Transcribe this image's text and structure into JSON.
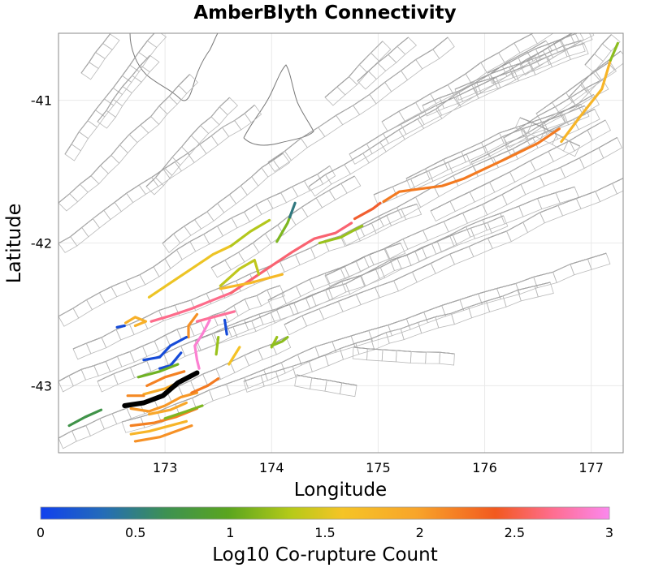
{
  "chart_data": {
    "type": "map",
    "title": "AmberBlyth Connectivity",
    "xlabel": "Longitude",
    "ylabel": "Latitude",
    "xlim": [
      172.0,
      177.3
    ],
    "ylim": [
      -43.47,
      -40.53
    ],
    "xticks": [
      173,
      174,
      175,
      176,
      177
    ],
    "xtick_labels": [
      "173",
      "174",
      "175",
      "176",
      "177"
    ],
    "yticks": [
      -41,
      -42,
      -43
    ],
    "ytick_labels": [
      "-41",
      "-42",
      "-43"
    ],
    "grid": true,
    "colorbar": {
      "label": "Log10 Co-rupture Count",
      "min": 0,
      "max": 3,
      "ticks": [
        0,
        0.5,
        1,
        1.5,
        2,
        2.5,
        3
      ],
      "tick_labels": [
        "0",
        "0.5",
        "1",
        "1.5",
        "2",
        "2.5",
        "3"
      ],
      "colors": [
        "#1040ee",
        "#3a8a5a",
        "#4aa32a",
        "#a8c81a",
        "#f5c426",
        "#f8a52a",
        "#f2721f",
        "#f0503a",
        "#fe6d8f",
        "#fb88ee"
      ]
    },
    "source_fault": {
      "name": "AmberBlyth",
      "color": "#000000",
      "points": [
        [
          172.62,
          -43.14
        ],
        [
          172.8,
          -43.12
        ],
        [
          172.98,
          -43.07
        ],
        [
          173.12,
          -42.98
        ],
        [
          173.3,
          -42.91
        ]
      ]
    },
    "co_rupture_sections": [
      {
        "log10_count": 0.45,
        "points": [
          [
            172.1,
            -43.28
          ],
          [
            172.25,
            -43.22
          ],
          [
            172.4,
            -43.17
          ]
        ]
      },
      {
        "log10_count": 0.05,
        "points": [
          [
            172.55,
            -42.59
          ],
          [
            172.62,
            -42.58
          ]
        ]
      },
      {
        "log10_count": 1.55,
        "points": [
          [
            172.63,
            -42.56
          ],
          [
            172.72,
            -42.52
          ],
          [
            172.82,
            -42.55
          ],
          [
            172.72,
            -42.58
          ]
        ]
      },
      {
        "log10_count": 2.65,
        "points": [
          [
            172.87,
            -42.55
          ],
          [
            173.05,
            -42.51
          ],
          [
            173.25,
            -42.46
          ],
          [
            173.45,
            -42.4
          ],
          [
            173.62,
            -42.35
          ]
        ]
      },
      {
        "log10_count": 2.55,
        "points": [
          [
            173.62,
            -42.35
          ],
          [
            173.82,
            -42.25
          ],
          [
            174.0,
            -42.16
          ],
          [
            174.2,
            -42.06
          ],
          [
            174.4,
            -41.97
          ],
          [
            174.6,
            -41.93
          ],
          [
            174.75,
            -41.86
          ]
        ]
      },
      {
        "log10_count": 2.2,
        "points": [
          [
            174.78,
            -41.83
          ],
          [
            174.95,
            -41.76
          ],
          [
            175.02,
            -41.72
          ]
        ]
      },
      {
        "log10_count": 1.95,
        "points": [
          [
            175.05,
            -41.71
          ],
          [
            175.2,
            -41.64
          ],
          [
            175.4,
            -41.62
          ],
          [
            175.6,
            -41.6
          ],
          [
            175.8,
            -41.55
          ],
          [
            176.0,
            -41.48
          ],
          [
            176.2,
            -41.41
          ],
          [
            176.5,
            -41.3
          ],
          [
            176.7,
            -41.2
          ]
        ]
      },
      {
        "log10_count": 1.5,
        "points": [
          [
            176.72,
            -41.29
          ],
          [
            176.9,
            -41.11
          ],
          [
            177.1,
            -40.92
          ],
          [
            177.18,
            -40.72
          ]
        ]
      },
      {
        "log10_count": 0.9,
        "points": [
          [
            177.18,
            -40.72
          ],
          [
            177.25,
            -40.6
          ]
        ]
      },
      {
        "log10_count": 1.3,
        "points": [
          [
            172.85,
            -42.38
          ],
          [
            173.05,
            -42.28
          ],
          [
            173.25,
            -42.18
          ],
          [
            173.45,
            -42.08
          ],
          [
            173.62,
            -42.02
          ]
        ]
      },
      {
        "log10_count": 1.05,
        "points": [
          [
            173.62,
            -42.02
          ],
          [
            173.8,
            -41.92
          ],
          [
            173.98,
            -41.84
          ]
        ]
      },
      {
        "log10_count": 1.1,
        "points": [
          [
            173.52,
            -42.3
          ],
          [
            173.7,
            -42.18
          ],
          [
            173.84,
            -42.12
          ],
          [
            173.88,
            -42.22
          ]
        ]
      },
      {
        "log10_count": 1.45,
        "points": [
          [
            173.52,
            -42.32
          ],
          [
            173.8,
            -42.28
          ],
          [
            174.1,
            -42.22
          ]
        ]
      },
      {
        "log10_count": 0.85,
        "points": [
          [
            174.05,
            -41.99
          ],
          [
            174.15,
            -41.86
          ],
          [
            174.18,
            -41.8
          ]
        ]
      },
      {
        "log10_count": 0.25,
        "points": [
          [
            174.17,
            -41.82
          ],
          [
            174.22,
            -41.72
          ]
        ]
      },
      {
        "log10_count": 0.95,
        "points": [
          [
            174.45,
            -42.0
          ],
          [
            174.65,
            -41.96
          ],
          [
            174.85,
            -41.88
          ]
        ]
      },
      {
        "log10_count": 2.7,
        "points": [
          [
            173.3,
            -42.55
          ],
          [
            173.45,
            -42.52
          ],
          [
            173.65,
            -42.48
          ]
        ]
      },
      {
        "log10_count": 2.9,
        "points": [
          [
            173.42,
            -42.54
          ],
          [
            173.35,
            -42.64
          ],
          [
            173.28,
            -42.72
          ],
          [
            173.3,
            -42.82
          ],
          [
            173.32,
            -42.88
          ]
        ]
      },
      {
        "log10_count": 1.8,
        "points": [
          [
            173.3,
            -42.5
          ],
          [
            173.22,
            -42.58
          ],
          [
            173.22,
            -42.66
          ]
        ]
      },
      {
        "log10_count": 0.05,
        "points": [
          [
            173.2,
            -42.66
          ],
          [
            173.05,
            -42.72
          ],
          [
            172.95,
            -42.8
          ],
          [
            172.8,
            -42.82
          ]
        ]
      },
      {
        "log10_count": 0.05,
        "points": [
          [
            173.15,
            -42.77
          ],
          [
            173.05,
            -42.86
          ],
          [
            172.95,
            -42.88
          ]
        ]
      },
      {
        "log10_count": 0.05,
        "points": [
          [
            173.56,
            -42.54
          ],
          [
            173.58,
            -42.64
          ]
        ]
      },
      {
        "log10_count": 0.95,
        "points": [
          [
            173.5,
            -42.66
          ],
          [
            173.48,
            -42.78
          ]
        ]
      },
      {
        "log10_count": 1.35,
        "points": [
          [
            173.6,
            -42.85
          ],
          [
            173.7,
            -42.73
          ]
        ]
      },
      {
        "log10_count": 0.8,
        "points": [
          [
            172.75,
            -42.94
          ],
          [
            172.95,
            -42.9
          ],
          [
            173.12,
            -42.85
          ]
        ]
      },
      {
        "log10_count": 1.9,
        "points": [
          [
            172.83,
            -43.0
          ],
          [
            173.0,
            -42.94
          ],
          [
            173.18,
            -42.9
          ]
        ]
      },
      {
        "log10_count": 1.6,
        "points": [
          [
            172.8,
            -43.06
          ],
          [
            173.0,
            -43.02
          ],
          [
            173.15,
            -42.97
          ]
        ]
      },
      {
        "log10_count": 1.85,
        "points": [
          [
            172.65,
            -43.07
          ],
          [
            172.8,
            -43.07
          ]
        ]
      },
      {
        "log10_count": 1.75,
        "points": [
          [
            172.68,
            -43.16
          ],
          [
            172.85,
            -43.18
          ],
          [
            173.0,
            -43.14
          ],
          [
            173.15,
            -43.08
          ],
          [
            173.3,
            -43.05
          ]
        ]
      },
      {
        "log10_count": 1.95,
        "points": [
          [
            173.25,
            -43.05
          ],
          [
            173.4,
            -43.0
          ],
          [
            173.5,
            -42.95
          ]
        ]
      },
      {
        "log10_count": 1.65,
        "points": [
          [
            172.85,
            -43.2
          ],
          [
            173.05,
            -43.17
          ],
          [
            173.2,
            -43.12
          ]
        ]
      },
      {
        "log10_count": 1.9,
        "points": [
          [
            172.68,
            -43.28
          ],
          [
            172.9,
            -43.26
          ],
          [
            173.1,
            -43.22
          ],
          [
            173.3,
            -43.16
          ]
        ]
      },
      {
        "log10_count": 1.5,
        "points": [
          [
            172.68,
            -43.34
          ],
          [
            172.85,
            -43.32
          ],
          [
            173.05,
            -43.28
          ],
          [
            173.2,
            -43.25
          ]
        ]
      },
      {
        "log10_count": 1.8,
        "points": [
          [
            172.72,
            -43.39
          ],
          [
            172.95,
            -43.36
          ],
          [
            173.1,
            -43.32
          ],
          [
            173.25,
            -43.28
          ]
        ]
      },
      {
        "log10_count": 0.85,
        "points": [
          [
            173.0,
            -43.23
          ],
          [
            173.2,
            -43.18
          ],
          [
            173.35,
            -43.14
          ]
        ]
      },
      {
        "log10_count": 0.95,
        "points": [
          [
            174.0,
            -42.73
          ],
          [
            174.05,
            -42.66
          ]
        ]
      },
      {
        "log10_count": 0.9,
        "points": [
          [
            174.0,
            -42.72
          ],
          [
            174.1,
            -42.69
          ],
          [
            174.15,
            -42.66
          ]
        ]
      }
    ]
  }
}
